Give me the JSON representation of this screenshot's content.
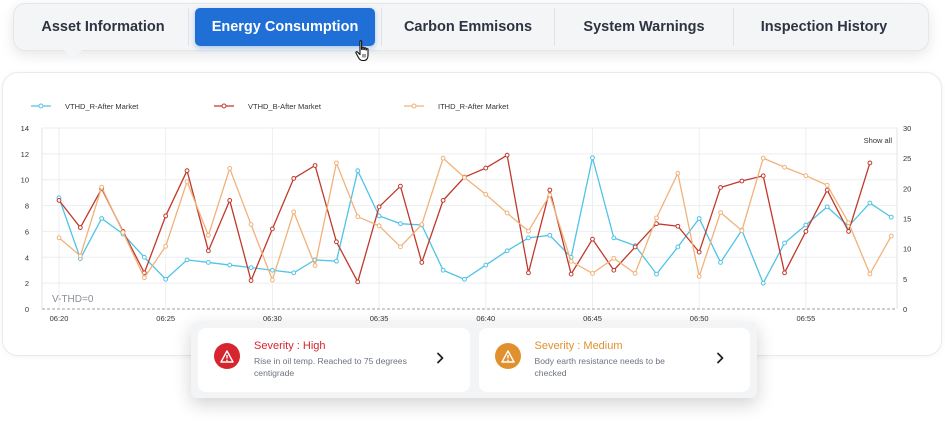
{
  "tabs": [
    {
      "label": "Asset Information",
      "active": false
    },
    {
      "label": "Energy Consumption",
      "active": true
    },
    {
      "label": "Carbon Emmisons",
      "active": false
    },
    {
      "label": "System Warnings",
      "active": false
    },
    {
      "label": "Inspection History",
      "active": false
    }
  ],
  "chart_data": {
    "type": "line",
    "title": "",
    "show_all_label": "Show all",
    "annotation": "V-THD=0",
    "x_ticks": [
      "06:20",
      "06:25",
      "06:30",
      "06:35",
      "06:40",
      "06:45",
      "06:50",
      "06:55"
    ],
    "xlim": [
      "06:20",
      "06:59"
    ],
    "y_left": {
      "ticks": [
        0,
        2,
        4,
        6,
        8,
        10,
        12,
        14
      ],
      "lim": [
        0,
        14
      ]
    },
    "y_right": {
      "ticks": [
        0,
        5,
        10,
        15,
        20,
        25,
        30
      ],
      "lim": [
        0,
        30
      ]
    },
    "grid": true,
    "legend_position": "top-left",
    "x_start_minute": 20,
    "series": [
      {
        "name": "VTHD_R-After Market",
        "color": "#4fc3e8",
        "axis": "left",
        "x": [
          "06:20",
          "06:21",
          "06:22",
          "06:23",
          "06:24",
          "06:25",
          "06:26",
          "06:27",
          "06:28",
          "06:29",
          "06:30",
          "06:31",
          "06:32",
          "06:33",
          "06:34",
          "06:35",
          "06:36",
          "06:37",
          "06:38",
          "06:39",
          "06:40",
          "06:41",
          "06:42",
          "06:43",
          "06:44",
          "06:45",
          "06:46",
          "06:47",
          "06:48",
          "06:49",
          "06:50",
          "06:51",
          "06:52",
          "06:53",
          "06:54",
          "06:55",
          "06:56",
          "06:57",
          "06:58",
          "06:59"
        ],
        "values": [
          8.6,
          3.9,
          7.0,
          5.8,
          4.0,
          2.3,
          3.8,
          3.6,
          3.4,
          3.2,
          3.0,
          2.8,
          3.8,
          3.7,
          10.7,
          7.2,
          6.6,
          6.5,
          3.0,
          2.3,
          3.4,
          4.5,
          5.5,
          5.7,
          4.0,
          11.7,
          5.5,
          4.9,
          2.7,
          4.8,
          7.0,
          3.6,
          6.1,
          2.0,
          5.1,
          6.5,
          7.9,
          6.4,
          8.2,
          7.1
        ]
      },
      {
        "name": "VTHD_B-After Market",
        "color": "#c0392b",
        "axis": "left",
        "x": [
          "06:20",
          "06:21",
          "06:22",
          "06:23",
          "06:24",
          "06:25",
          "06:26",
          "06:27",
          "06:28",
          "06:29",
          "06:30",
          "06:31",
          "06:32",
          "06:33",
          "06:34",
          "06:35",
          "06:36",
          "06:37",
          "06:38",
          "06:39",
          "06:40",
          "06:41",
          "06:42",
          "06:43",
          "06:44",
          "06:45",
          "06:46",
          "06:47",
          "06:48",
          "06:49",
          "06:50",
          "06:51",
          "06:52",
          "06:53",
          "06:54",
          "06:55",
          "06:56",
          "06:57",
          "06:58"
        ],
        "values": [
          8.4,
          6.3,
          9.3,
          6.0,
          2.8,
          7.2,
          10.7,
          4.5,
          8.4,
          2.2,
          6.2,
          10.1,
          11.1,
          5.2,
          2.1,
          7.9,
          9.5,
          3.6,
          8.4,
          10.2,
          10.9,
          11.9,
          2.8,
          9.2,
          2.7,
          5.4,
          3.0,
          4.8,
          6.6,
          6.4,
          4.4,
          9.4,
          9.9,
          10.3,
          2.8,
          6.0,
          9.2,
          6.0,
          11.3
        ]
      },
      {
        "name": "ITHD_R-After Market",
        "color": "#f0b27a",
        "axis": "right",
        "x": [
          "06:20",
          "06:21",
          "06:22",
          "06:23",
          "06:24",
          "06:25",
          "06:26",
          "06:27",
          "06:28",
          "06:29",
          "06:30",
          "06:31",
          "06:32",
          "06:33",
          "06:34",
          "06:35",
          "06:36",
          "06:37",
          "06:38",
          "06:39",
          "06:40",
          "06:41",
          "06:42",
          "06:43",
          "06:44",
          "06:45",
          "06:46",
          "06:47",
          "06:48",
          "06:49",
          "06:50",
          "06:51",
          "06:52",
          "06:53",
          "06:54",
          "06:55",
          "06:56",
          "06:57",
          "06:58",
          "06:59"
        ],
        "values": [
          11.8,
          8.8,
          20.2,
          12.7,
          5.2,
          10.4,
          21.1,
          12.2,
          23.3,
          14.0,
          4.8,
          16.1,
          7.2,
          24.2,
          15.3,
          13.8,
          10.3,
          14.0,
          25.0,
          21.8,
          19.0,
          15.9,
          12.9,
          18.9,
          7.9,
          5.9,
          8.4,
          5.9,
          15.1,
          22.5,
          5.4,
          16.0,
          13.0,
          25.0,
          23.5,
          22.1,
          20.5,
          14.3,
          5.8,
          12.1
        ]
      }
    ]
  },
  "alerts": [
    {
      "severity_label": "Severity : High",
      "color": "#d6252f",
      "icon": "warning-triangle-icon",
      "description": "Rise in oil temp. Reached to 75 degrees centigrade"
    },
    {
      "severity_label": "Severity : Medium",
      "color": "#e0902c",
      "icon": "warning-triangle-icon",
      "description": "Body earth resistance needs to be checked"
    }
  ]
}
